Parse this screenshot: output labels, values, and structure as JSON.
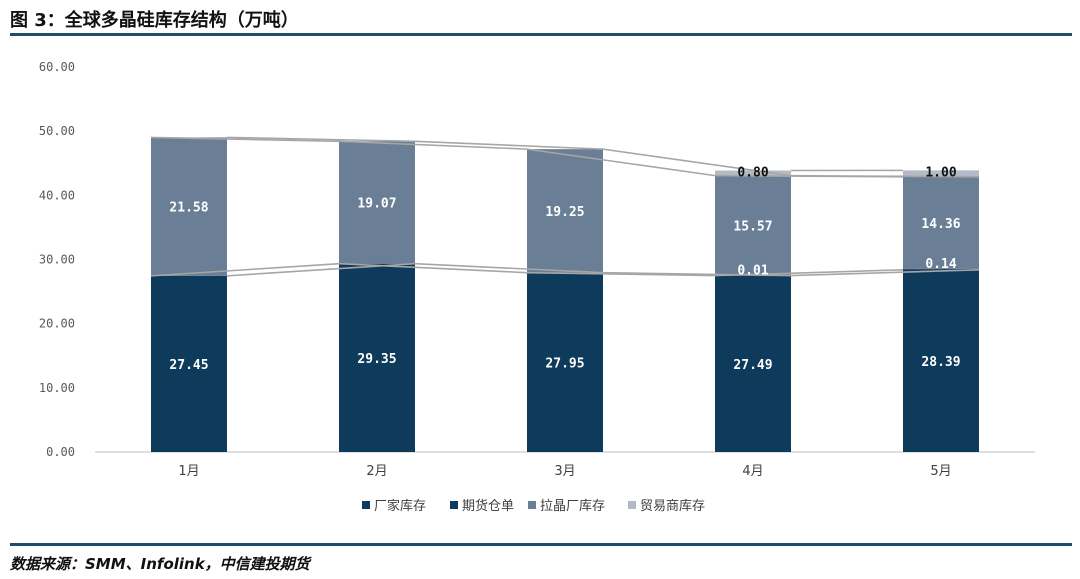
{
  "header": {
    "title": "图 3：全球多晶硅库存结构（万吨）"
  },
  "footer": {
    "source": "数据来源：SMM、Infolink，中信建投期货"
  },
  "chart_data": {
    "type": "bar",
    "stacked": true,
    "categories": [
      "1月",
      "2月",
      "3月",
      "4月",
      "5月"
    ],
    "series": [
      {
        "name": "厂家库存",
        "color": "#0e3a5b",
        "values": [
          27.45,
          29.35,
          27.95,
          27.49,
          28.39
        ],
        "labels": [
          "27.45",
          "29.35",
          "27.95",
          "27.49",
          "28.39"
        ]
      },
      {
        "name": "期货仓单",
        "color": "#0e3a5b",
        "values": [
          0,
          0,
          0,
          0.01,
          0.14
        ],
        "labels": [
          "",
          "",
          "",
          "0.01",
          "0.14"
        ]
      },
      {
        "name": "拉晶厂库存",
        "color": "#6a7f96",
        "values": [
          21.58,
          19.07,
          19.25,
          15.57,
          14.36
        ],
        "labels": [
          "21.58",
          "19.07",
          "19.25",
          "15.57",
          "14.36"
        ]
      },
      {
        "name": "贸易商库存",
        "color": "#b4bbc6",
        "values": [
          0,
          0,
          0,
          0.8,
          1.0
        ],
        "labels": [
          "",
          "",
          "",
          "0.80",
          "1.00"
        ]
      }
    ],
    "ylim": [
      0,
      60
    ],
    "yticks": [
      "0.00",
      "10.00",
      "20.00",
      "30.00",
      "40.00",
      "50.00",
      "60.00"
    ],
    "legend_position": "bottom",
    "series_lines": true
  }
}
